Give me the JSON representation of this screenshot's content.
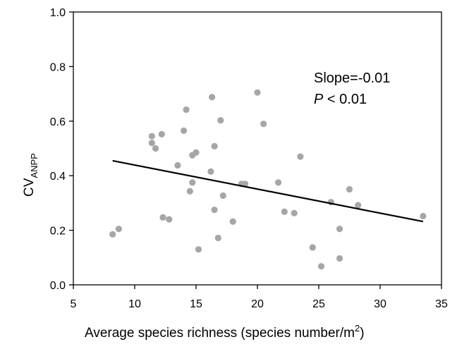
{
  "chart_data": {
    "type": "scatter",
    "xlabel": "Average species richness (species number/m",
    "xlabel_superscript": "2",
    "xlabel_suffix": ")",
    "ylabel_main": "CV",
    "ylabel_subscript": "ANPP",
    "xlim": [
      5,
      35
    ],
    "ylim": [
      0.0,
      1.0
    ],
    "x_ticks": [
      5,
      10,
      15,
      20,
      25,
      30,
      35
    ],
    "y_ticks": [
      0.0,
      0.2,
      0.4,
      0.6,
      0.8,
      1.0
    ],
    "x_tick_labels": [
      "5",
      "10",
      "15",
      "20",
      "25",
      "30",
      "35"
    ],
    "y_tick_labels": [
      "0.0",
      "0.2",
      "0.4",
      "0.6",
      "0.8",
      "1.0"
    ],
    "grid": false,
    "point_color": "#a6a6a6",
    "line_color": "#000000",
    "annotation_slope": "Slope=-0.01",
    "annotation_p_italic": "P",
    "annotation_p_rest": " < 0.01",
    "points": [
      {
        "x": 8.2,
        "y": 0.185
      },
      {
        "x": 8.7,
        "y": 0.205
      },
      {
        "x": 11.4,
        "y": 0.545
      },
      {
        "x": 11.4,
        "y": 0.52
      },
      {
        "x": 11.7,
        "y": 0.5
      },
      {
        "x": 12.2,
        "y": 0.552
      },
      {
        "x": 12.3,
        "y": 0.247
      },
      {
        "x": 12.8,
        "y": 0.24
      },
      {
        "x": 13.5,
        "y": 0.438
      },
      {
        "x": 14.0,
        "y": 0.565
      },
      {
        "x": 14.2,
        "y": 0.642
      },
      {
        "x": 14.5,
        "y": 0.343
      },
      {
        "x": 14.7,
        "y": 0.375
      },
      {
        "x": 14.7,
        "y": 0.475
      },
      {
        "x": 15.0,
        "y": 0.485
      },
      {
        "x": 15.2,
        "y": 0.13
      },
      {
        "x": 16.2,
        "y": 0.415
      },
      {
        "x": 16.3,
        "y": 0.688
      },
      {
        "x": 16.5,
        "y": 0.508
      },
      {
        "x": 16.5,
        "y": 0.275
      },
      {
        "x": 16.8,
        "y": 0.172
      },
      {
        "x": 17.0,
        "y": 0.603
      },
      {
        "x": 17.2,
        "y": 0.327
      },
      {
        "x": 18.0,
        "y": 0.232
      },
      {
        "x": 18.7,
        "y": 0.37
      },
      {
        "x": 19.0,
        "y": 0.37
      },
      {
        "x": 20.0,
        "y": 0.705
      },
      {
        "x": 20.5,
        "y": 0.59
      },
      {
        "x": 21.7,
        "y": 0.375
      },
      {
        "x": 22.2,
        "y": 0.268
      },
      {
        "x": 23.0,
        "y": 0.263
      },
      {
        "x": 23.5,
        "y": 0.47
      },
      {
        "x": 24.5,
        "y": 0.137
      },
      {
        "x": 25.2,
        "y": 0.068
      },
      {
        "x": 26.0,
        "y": 0.303
      },
      {
        "x": 26.7,
        "y": 0.205
      },
      {
        "x": 26.7,
        "y": 0.097
      },
      {
        "x": 27.5,
        "y": 0.35
      },
      {
        "x": 28.2,
        "y": 0.292
      },
      {
        "x": 33.5,
        "y": 0.252
      }
    ],
    "regression": {
      "x": [
        8.2,
        33.5
      ],
      "y": [
        0.455,
        0.232
      ]
    }
  }
}
